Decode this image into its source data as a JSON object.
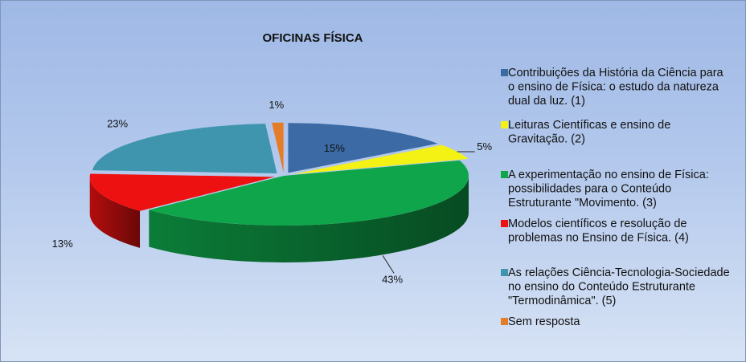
{
  "chart_data": {
    "type": "pie",
    "style": "3d-exploded",
    "title": "OFICINAS FÍSICA",
    "legend_position": "right",
    "series": [
      {
        "label_lines": [
          "Contribuições da História da Ciência para",
          "o ensino de Física: o estudo da natureza",
          "dual da luz. (1)"
        ],
        "value": 15,
        "value_label": "15%",
        "color": "#3b6aa5"
      },
      {
        "label_lines": [
          "Leituras Científicas e ensino de",
          "Gravitação. (2)"
        ],
        "value": 5,
        "value_label": "5%",
        "color": "#f4f214"
      },
      {
        "label_lines": [
          "A experimentação no ensino de Física:",
          "possibilidades para o Conteúdo",
          "Estruturante \"Movimento. (3)"
        ],
        "value": 43,
        "value_label": "43%",
        "color": "#0fa64b"
      },
      {
        "label_lines": [
          "Modelos científicos e resolução de",
          "problemas no Ensino de Física. (4)"
        ],
        "value": 13,
        "value_label": "13%",
        "color": "#ee1111"
      },
      {
        "label_lines": [
          "As relações Ciência-Tecnologia-Sociedade",
          "no ensino do Conteúdo Estruturante",
          "\"Termodinâmica\". (5)"
        ],
        "value": 23,
        "value_label": "23%",
        "color": "#3f95ae"
      },
      {
        "label_lines": [
          "Sem resposta"
        ],
        "value": 1,
        "value_label": "1%",
        "color": "#e57c27"
      }
    ]
  }
}
